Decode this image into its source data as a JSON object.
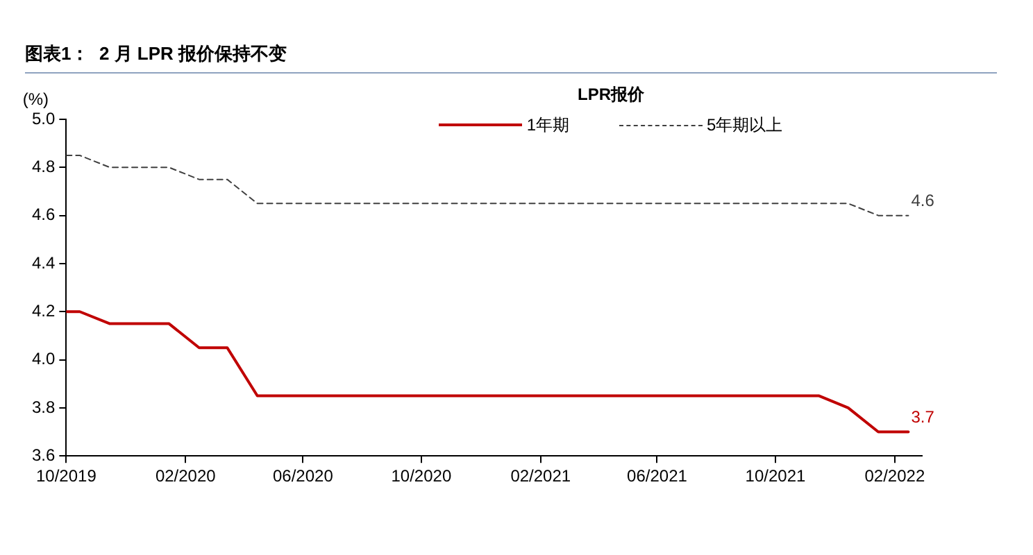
{
  "chart_data": {
    "type": "line",
    "title": "图表1：  2 月 LPR 报价保持不变",
    "ylabel": "(%)",
    "legend_title": "LPR报价",
    "legend": "top",
    "marker": "none",
    "x": [
      "2019-10-01",
      "2019-10-15",
      "2019-11-15",
      "2019-12-15",
      "2020-01-15",
      "2020-02-15",
      "2020-03-15",
      "2020-04-15",
      "2020-05-15",
      "2020-06-15",
      "2020-07-15",
      "2020-08-15",
      "2020-09-15",
      "2020-10-15",
      "2020-11-15",
      "2020-12-15",
      "2021-01-15",
      "2021-02-15",
      "2021-03-15",
      "2021-04-15",
      "2021-05-15",
      "2021-06-15",
      "2021-07-15",
      "2021-08-15",
      "2021-09-15",
      "2021-10-15",
      "2021-11-15",
      "2021-12-15",
      "2022-01-15",
      "2022-02-15"
    ],
    "series": [
      {
        "name": "1年期",
        "color": "#c00000",
        "line_style": "solid",
        "values": [
          4.2,
          4.2,
          4.15,
          4.15,
          4.15,
          4.05,
          4.05,
          3.85,
          3.85,
          3.85,
          3.85,
          3.85,
          3.85,
          3.85,
          3.85,
          3.85,
          3.85,
          3.85,
          3.85,
          3.85,
          3.85,
          3.85,
          3.85,
          3.85,
          3.85,
          3.85,
          3.85,
          3.8,
          3.7,
          3.7
        ]
      },
      {
        "name": "5年期以上",
        "color": "#404040",
        "line_style": "dashed",
        "values": [
          4.85,
          4.85,
          4.8,
          4.8,
          4.8,
          4.75,
          4.75,
          4.65,
          4.65,
          4.65,
          4.65,
          4.65,
          4.65,
          4.65,
          4.65,
          4.65,
          4.65,
          4.65,
          4.65,
          4.65,
          4.65,
          4.65,
          4.65,
          4.65,
          4.65,
          4.65,
          4.65,
          4.65,
          4.6,
          4.6
        ]
      }
    ],
    "xlim": [
      "2019-10-01",
      "2022-03-01"
    ],
    "xticks": [
      {
        "value": "2019-10-01",
        "label": "10/2019"
      },
      {
        "value": "2020-02-01",
        "label": "02/2020"
      },
      {
        "value": "2020-06-01",
        "label": "06/2020"
      },
      {
        "value": "2020-10-01",
        "label": "10/2020"
      },
      {
        "value": "2021-02-01",
        "label": "02/2021"
      },
      {
        "value": "2021-06-01",
        "label": "06/2021"
      },
      {
        "value": "2021-10-01",
        "label": "10/2021"
      },
      {
        "value": "2022-02-01",
        "label": "02/2022"
      }
    ],
    "ylim": [
      3.6,
      5.0
    ],
    "yticks": [
      {
        "value": 3.6,
        "label": "3.6"
      },
      {
        "value": 3.8,
        "label": "3.8"
      },
      {
        "value": 4.0,
        "label": "4.0"
      },
      {
        "value": 4.2,
        "label": "4.2"
      },
      {
        "value": 4.4,
        "label": "4.4"
      },
      {
        "value": 4.6,
        "label": "4.6"
      },
      {
        "value": 4.8,
        "label": "4.8"
      },
      {
        "value": 5.0,
        "label": "5.0"
      }
    ],
    "annotations": [
      {
        "text": "4.6",
        "x": "2022-02-15",
        "y": 4.6
      },
      {
        "text": "3.7",
        "x": "2022-02-15",
        "y": 3.7
      }
    ]
  }
}
